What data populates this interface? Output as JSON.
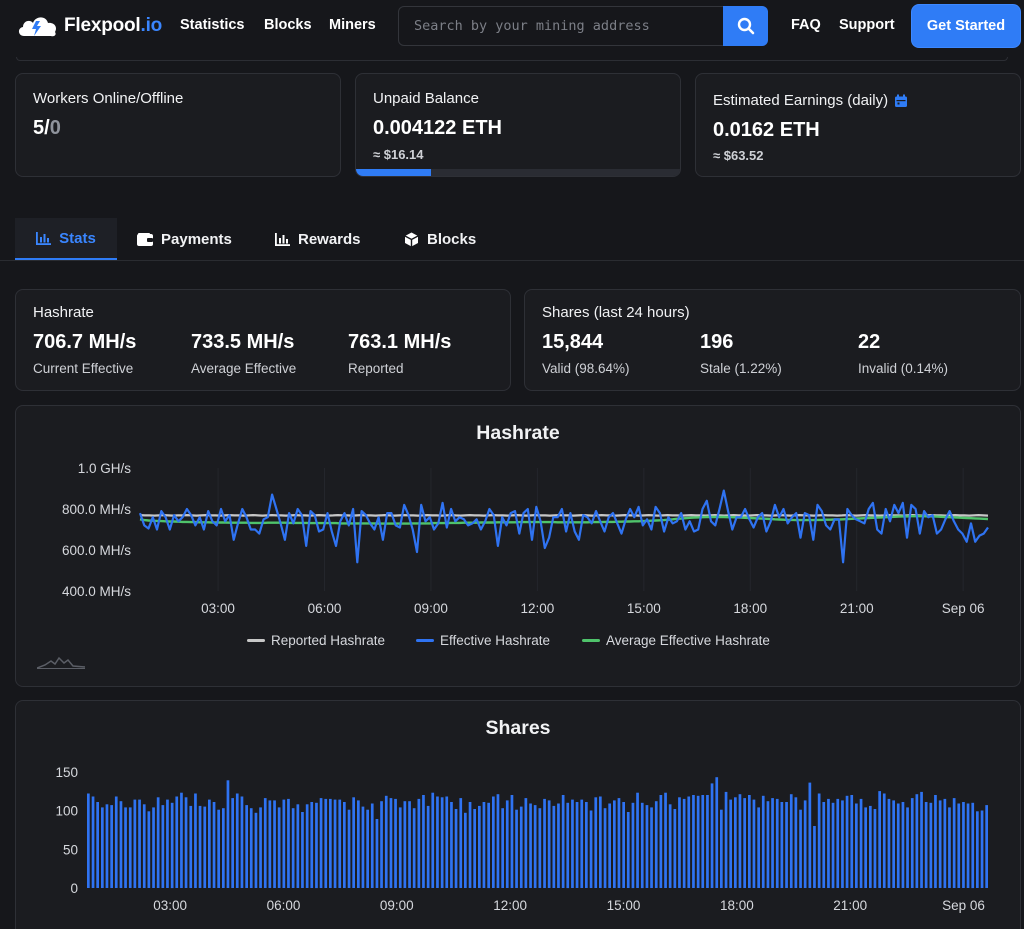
{
  "brand": {
    "name": "Flexpool",
    "tld": ".io"
  },
  "nav": {
    "links": [
      "Statistics",
      "Blocks",
      "Miners"
    ],
    "right_links": [
      "FAQ",
      "Support"
    ],
    "cta": "Get Started"
  },
  "search": {
    "placeholder": "Search by your mining address"
  },
  "summary": {
    "workers": {
      "label": "Workers Online/Offline",
      "online": "5",
      "sep": "/",
      "offline": "0"
    },
    "unpaid": {
      "label": "Unpaid Balance",
      "value": "0.004122 ETH",
      "usd": "≈ $16.14",
      "progress_fraction": 0.23
    },
    "earnings": {
      "label": "Estimated Earnings (daily)",
      "value": "0.0162 ETH",
      "usd": "≈ $63.52"
    }
  },
  "tabs": [
    {
      "label": "Stats",
      "icon": "bar-chart-icon",
      "active": true
    },
    {
      "label": "Payments",
      "icon": "wallet-icon",
      "active": false
    },
    {
      "label": "Rewards",
      "icon": "bar-chart-icon",
      "active": false
    },
    {
      "label": "Blocks",
      "icon": "cube-icon",
      "active": false
    }
  ],
  "hashrate_stats": {
    "title": "Hashrate",
    "items": [
      {
        "value": "706.7 MH/s",
        "caption": "Current Effective"
      },
      {
        "value": "733.5 MH/s",
        "caption": "Average Effective"
      },
      {
        "value": "763.1 MH/s",
        "caption": "Reported"
      }
    ]
  },
  "shares_stats": {
    "title": "Shares (last 24 hours)",
    "items": [
      {
        "value": "15,844",
        "caption": "Valid (98.64%)"
      },
      {
        "value": "196",
        "caption": "Stale (1.22%)"
      },
      {
        "value": "22",
        "caption": "Invalid (0.14%)"
      }
    ]
  },
  "colors": {
    "accent": "#2f7cf6",
    "reported": "#c7c7c7",
    "effective": "#2f73f2",
    "average": "#4fc36b",
    "stale": "#f5b731",
    "invalid": "#555861"
  },
  "chart_data": [
    {
      "type": "line",
      "title": "Hashrate",
      "y_ticks": [
        "1.0 GH/s",
        "800.0 MH/s",
        "600.0 MH/s",
        "400.0 MH/s"
      ],
      "y_tick_values_mhs": [
        1000,
        800,
        600,
        400
      ],
      "ylim_mhs": [
        400,
        1000
      ],
      "x_ticks": [
        "03:00",
        "06:00",
        "09:00",
        "12:00",
        "15:00",
        "18:00",
        "21:00",
        "Sep 06"
      ],
      "x_range_hours": [
        0.8,
        24.7
      ],
      "x_tick_hours": [
        3,
        6,
        9,
        12,
        15,
        18,
        21,
        24
      ],
      "legend": [
        "Reported Hashrate",
        "Effective Hashrate",
        "Average Effective Hashrate"
      ],
      "grid": true,
      "series": [
        {
          "name": "Reported Hashrate",
          "values": [
            770,
            769,
            769,
            768,
            769,
            770,
            769,
            768,
            769,
            769,
            770,
            769,
            768,
            769,
            770,
            769,
            769,
            768,
            769,
            770,
            769,
            769,
            768,
            769,
            770,
            769,
            768,
            769,
            770,
            769,
            769,
            768,
            769,
            770,
            769,
            769,
            768,
            769,
            770,
            769,
            768,
            769,
            770,
            769,
            769,
            768,
            769,
            770,
            769,
            769,
            768,
            769,
            770,
            769,
            768,
            769,
            770,
            769,
            769,
            768,
            769,
            770,
            769,
            769,
            768,
            769,
            770,
            769,
            768,
            769,
            770,
            769,
            769,
            768,
            769,
            770,
            769,
            769,
            768,
            769,
            770,
            769,
            768,
            769,
            770,
            769,
            769,
            768,
            769,
            770,
            769,
            769,
            768,
            769,
            770,
            769,
            768,
            769,
            770,
            769,
            769,
            768,
            769,
            770,
            769,
            769,
            768,
            769,
            770,
            769,
            768,
            769,
            770,
            769,
            769,
            768,
            769,
            770,
            769,
            769,
            768,
            769,
            770,
            769,
            768,
            769,
            770,
            769,
            769,
            768,
            769,
            770,
            769,
            769,
            768,
            769,
            770,
            769,
            768,
            769,
            770,
            769,
            769,
            768,
            769,
            770,
            769,
            769,
            768,
            769,
            770,
            769,
            768,
            769,
            770,
            769,
            769,
            768,
            769,
            770,
            769,
            769,
            768,
            769,
            770,
            769,
            768,
            769,
            770,
            769,
            769,
            768,
            769,
            770,
            769,
            769,
            768,
            769,
            770,
            769,
            768
          ]
        },
        {
          "name": "Effective Hashrate",
          "values": [
            780,
            720,
            705,
            760,
            700,
            790,
            760,
            700,
            770,
            740,
            760,
            800,
            770,
            720,
            760,
            700,
            790,
            740,
            720,
            800,
            740,
            770,
            650,
            730,
            800,
            760,
            700,
            700,
            680,
            750,
            760,
            870,
            800,
            730,
            650,
            780,
            730,
            800,
            770,
            620,
            790,
            770,
            690,
            700,
            780,
            690,
            620,
            740,
            780,
            720,
            800,
            540,
            790,
            770,
            730,
            700,
            760,
            650,
            780,
            780,
            720,
            710,
            820,
            770,
            700,
            590,
            820,
            740,
            760,
            700,
            730,
            830,
            710,
            800,
            740,
            760,
            750,
            720,
            730,
            750,
            700,
            740,
            800,
            770,
            620,
            760,
            720,
            780,
            790,
            680,
            780,
            800,
            650,
            810,
            740,
            610,
            660,
            760,
            760,
            800,
            690,
            780,
            690,
            650,
            770,
            760,
            730,
            790,
            740,
            690,
            760,
            780,
            730,
            680,
            750,
            800,
            760,
            810,
            720,
            750,
            700,
            810,
            780,
            690,
            760,
            730,
            740,
            780,
            700,
            740,
            690,
            700,
            800,
            840,
            740,
            720,
            800,
            890,
            790,
            700,
            760,
            760,
            800,
            750,
            710,
            760,
            780,
            690,
            740,
            820,
            760,
            800,
            730,
            760,
            780,
            660,
            780,
            770,
            650,
            820,
            790,
            720,
            700,
            750,
            750,
            540,
            800,
            770,
            750,
            740,
            730,
            800,
            830,
            700,
            680,
            800,
            740,
            820,
            780,
            830,
            660,
            820,
            800,
            680,
            790,
            760,
            770,
            680,
            700,
            750,
            790,
            740,
            700,
            680,
            640,
            730,
            640,
            670,
            680,
            710
          ]
        },
        {
          "name": "Average Effective Hashrate",
          "values": [
            750,
            746,
            744,
            743,
            742,
            741,
            740,
            739,
            739,
            738,
            737,
            737,
            736,
            736,
            735,
            735,
            735,
            734,
            734,
            734,
            734,
            733,
            733,
            733,
            733,
            733,
            732,
            732,
            732,
            732,
            733,
            733,
            733,
            733,
            733,
            732,
            732,
            732,
            732,
            732,
            731,
            731,
            731,
            731,
            731,
            731,
            731,
            730,
            730,
            730,
            730,
            730,
            730,
            730,
            730,
            730,
            729,
            729,
            729,
            729,
            729,
            729,
            729,
            729,
            730,
            730,
            730,
            730,
            730,
            731,
            731,
            731,
            731,
            732,
            732,
            732,
            733,
            733,
            733,
            733,
            734,
            734,
            734,
            734,
            735,
            735,
            735,
            735,
            735,
            736,
            736,
            736,
            736,
            736,
            736,
            736,
            736,
            736,
            735,
            735,
            735,
            735,
            735,
            735,
            735,
            735,
            736,
            736,
            736,
            737,
            737,
            737,
            738,
            738,
            739,
            739,
            740,
            740,
            741,
            742,
            743,
            744,
            745,
            746,
            748,
            750,
            752,
            753,
            755,
            757,
            758,
            759,
            760,
            761,
            761,
            761,
            761,
            761,
            760,
            760,
            759,
            758,
            757,
            756,
            755,
            754,
            753,
            752,
            751,
            750,
            749,
            748,
            747,
            747,
            746,
            746,
            746,
            746,
            746,
            747,
            747,
            748,
            748,
            749,
            749,
            750,
            751,
            752,
            753,
            754,
            755,
            756,
            757,
            758,
            759,
            760,
            761,
            762,
            763,
            764,
            764,
            765,
            765,
            765,
            765,
            764,
            764,
            763,
            762,
            761,
            760,
            759,
            758,
            757,
            756,
            755,
            754,
            753,
            752,
            751
          ]
        }
      ]
    },
    {
      "type": "bar",
      "title": "Shares",
      "y_ticks": [
        "150",
        "100",
        "50",
        "0"
      ],
      "y_tick_values": [
        150,
        100,
        50,
        0
      ],
      "ylim": [
        0,
        160
      ],
      "x_ticks": [
        "03:00",
        "06:00",
        "09:00",
        "12:00",
        "15:00",
        "18:00",
        "21:00",
        "Sep 06"
      ],
      "x_range_hours": [
        0.8,
        24.7
      ],
      "x_tick_hours": [
        3,
        6,
        9,
        12,
        15,
        18,
        21,
        24
      ],
      "series": [
        {
          "name": "valid",
          "values": [
            122,
            118,
            111,
            104,
            108,
            107,
            118,
            112,
            104,
            104,
            114,
            114,
            108,
            99,
            104,
            117,
            107,
            114,
            110,
            118,
            123,
            117,
            106,
            122,
            106,
            105,
            114,
            111,
            101,
            103,
            139,
            116,
            122,
            118,
            107,
            103,
            97,
            104,
            116,
            113,
            113,
            104,
            114,
            115,
            103,
            108,
            98,
            108,
            111,
            110,
            116,
            115,
            115,
            114,
            114,
            111,
            101,
            117,
            113,
            105,
            101,
            109,
            89,
            112,
            119,
            116,
            115,
            104,
            112,
            112,
            103,
            115,
            120,
            106,
            123,
            118,
            117,
            118,
            111,
            102,
            116,
            97,
            111,
            102,
            106,
            111,
            110,
            118,
            121,
            103,
            113,
            120,
            101,
            105,
            116,
            109,
            107,
            103,
            115,
            113,
            106,
            109,
            120,
            110,
            114,
            111,
            114,
            111,
            100,
            117,
            118,
            103,
            109,
            113,
            116,
            111,
            98,
            110,
            123,
            110,
            107,
            104,
            112,
            120,
            123,
            108,
            102,
            117,
            115,
            118,
            120,
            119,
            120,
            120,
            135,
            143,
            101,
            124,
            114,
            117,
            121,
            116,
            120,
            114,
            104,
            119,
            112,
            116,
            115,
            111,
            111,
            121,
            117,
            101,
            113,
            136,
            80,
            122,
            111,
            115,
            110,
            115,
            113,
            119,
            120,
            109,
            115,
            104,
            106,
            102,
            125,
            122,
            115,
            113,
            109,
            111,
            104,
            116,
            121,
            124,
            111,
            110,
            120,
            113,
            115,
            104,
            116,
            109,
            111,
            109,
            110,
            99,
            100,
            107
          ],
          "color": "#2f73f2"
        }
      ]
    }
  ]
}
